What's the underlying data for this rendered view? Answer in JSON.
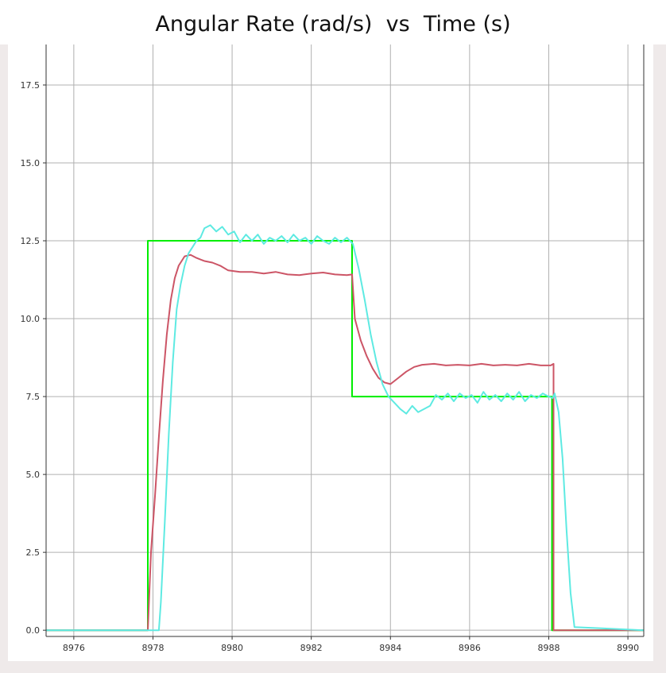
{
  "chart_data": {
    "type": "line",
    "title": "Angular Rate (rad/s)  vs  Time (s)",
    "xlim": [
      8975.3,
      8990.4
    ],
    "ylim": [
      -0.2,
      18.8
    ],
    "x_ticks": [
      8976,
      8978,
      8980,
      8982,
      8984,
      8986,
      8988,
      8990
    ],
    "y_ticks": [
      0.0,
      2.5,
      5.0,
      7.5,
      10.0,
      12.5,
      15.0,
      17.5
    ],
    "x_tick_labels": [
      "8976",
      "8978",
      "8980",
      "8982",
      "8984",
      "8986",
      "8988",
      "8990"
    ],
    "y_tick_labels": [
      "0.0",
      "2.5",
      "5.0",
      "7.5",
      "10.0",
      "12.5",
      "15.0",
      "17.5"
    ],
    "grid": true,
    "series": [
      {
        "color": "#00ee00",
        "x": [
          8975.3,
          8977.87,
          8977.87,
          8983.03,
          8983.03,
          8988.08,
          8988.08,
          8990.4
        ],
        "y": [
          0,
          0,
          12.5,
          12.5,
          7.5,
          7.5,
          0,
          0
        ]
      },
      {
        "color": "#cc5566",
        "x": [
          8975.3,
          8977.87,
          8977.95,
          8978.05,
          8978.15,
          8978.25,
          8978.35,
          8978.45,
          8978.55,
          8978.65,
          8978.8,
          8978.95,
          8979.1,
          8979.3,
          8979.5,
          8979.7,
          8979.9,
          8980.2,
          8980.5,
          8980.8,
          8981.1,
          8981.4,
          8981.7,
          8982.0,
          8982.3,
          8982.6,
          8982.9,
          8983.03,
          8983.1,
          8983.25,
          8983.4,
          8983.55,
          8983.7,
          8983.85,
          8984.0,
          8984.2,
          8984.4,
          8984.6,
          8984.8,
          8985.1,
          8985.4,
          8985.7,
          8986.0,
          8986.3,
          8986.6,
          8986.9,
          8987.2,
          8987.5,
          8987.8,
          8988.05,
          8988.12,
          8988.12,
          8988.3,
          8990.4
        ],
        "y": [
          0,
          0,
          2.5,
          4.3,
          6.2,
          8.0,
          9.5,
          10.6,
          11.3,
          11.7,
          12.0,
          12.05,
          11.95,
          11.85,
          11.8,
          11.7,
          11.55,
          11.5,
          11.5,
          11.45,
          11.5,
          11.42,
          11.4,
          11.45,
          11.48,
          11.42,
          11.4,
          11.42,
          10.0,
          9.3,
          8.8,
          8.4,
          8.1,
          7.95,
          7.9,
          8.1,
          8.3,
          8.45,
          8.52,
          8.55,
          8.5,
          8.52,
          8.5,
          8.55,
          8.5,
          8.52,
          8.5,
          8.55,
          8.5,
          8.5,
          8.55,
          0,
          0,
          0
        ]
      },
      {
        "color": "#5eeae2",
        "x": [
          8975.3,
          8978.15,
          8978.2,
          8978.3,
          8978.4,
          8978.5,
          8978.6,
          8978.7,
          8978.8,
          8978.9,
          8979.0,
          8979.1,
          8979.2,
          8979.3,
          8979.45,
          8979.6,
          8979.75,
          8979.9,
          8980.05,
          8980.2,
          8980.35,
          8980.5,
          8980.65,
          8980.8,
          8980.95,
          8981.1,
          8981.25,
          8981.4,
          8981.55,
          8981.7,
          8981.85,
          8982.0,
          8982.15,
          8982.3,
          8982.45,
          8982.6,
          8982.75,
          8982.9,
          8983.05,
          8983.2,
          8983.35,
          8983.5,
          8983.65,
          8983.8,
          8983.95,
          8984.1,
          8984.25,
          8984.4,
          8984.55,
          8984.7,
          8984.85,
          8985.0,
          8985.15,
          8985.3,
          8985.45,
          8985.6,
          8985.75,
          8985.9,
          8986.05,
          8986.2,
          8986.35,
          8986.5,
          8986.65,
          8986.8,
          8986.95,
          8987.1,
          8987.25,
          8987.4,
          8987.55,
          8987.7,
          8987.85,
          8988.0,
          8988.1,
          8988.15,
          8988.25,
          8988.35,
          8988.45,
          8988.55,
          8988.65,
          8990.4
        ],
        "y": [
          0,
          0,
          0.9,
          3.5,
          6.3,
          8.6,
          10.3,
          11.1,
          11.7,
          12.1,
          12.3,
          12.5,
          12.6,
          12.9,
          13.0,
          12.8,
          12.95,
          12.7,
          12.8,
          12.45,
          12.7,
          12.5,
          12.7,
          12.4,
          12.6,
          12.5,
          12.65,
          12.45,
          12.7,
          12.5,
          12.6,
          12.4,
          12.65,
          12.5,
          12.4,
          12.6,
          12.45,
          12.6,
          12.4,
          11.6,
          10.6,
          9.5,
          8.6,
          7.9,
          7.5,
          7.3,
          7.1,
          6.95,
          7.2,
          7.0,
          7.1,
          7.2,
          7.55,
          7.4,
          7.6,
          7.35,
          7.6,
          7.45,
          7.55,
          7.3,
          7.65,
          7.4,
          7.55,
          7.35,
          7.6,
          7.4,
          7.65,
          7.35,
          7.55,
          7.45,
          7.6,
          7.5,
          7.45,
          7.6,
          7.0,
          5.5,
          3.2,
          1.2,
          0.1,
          0
        ]
      }
    ]
  }
}
